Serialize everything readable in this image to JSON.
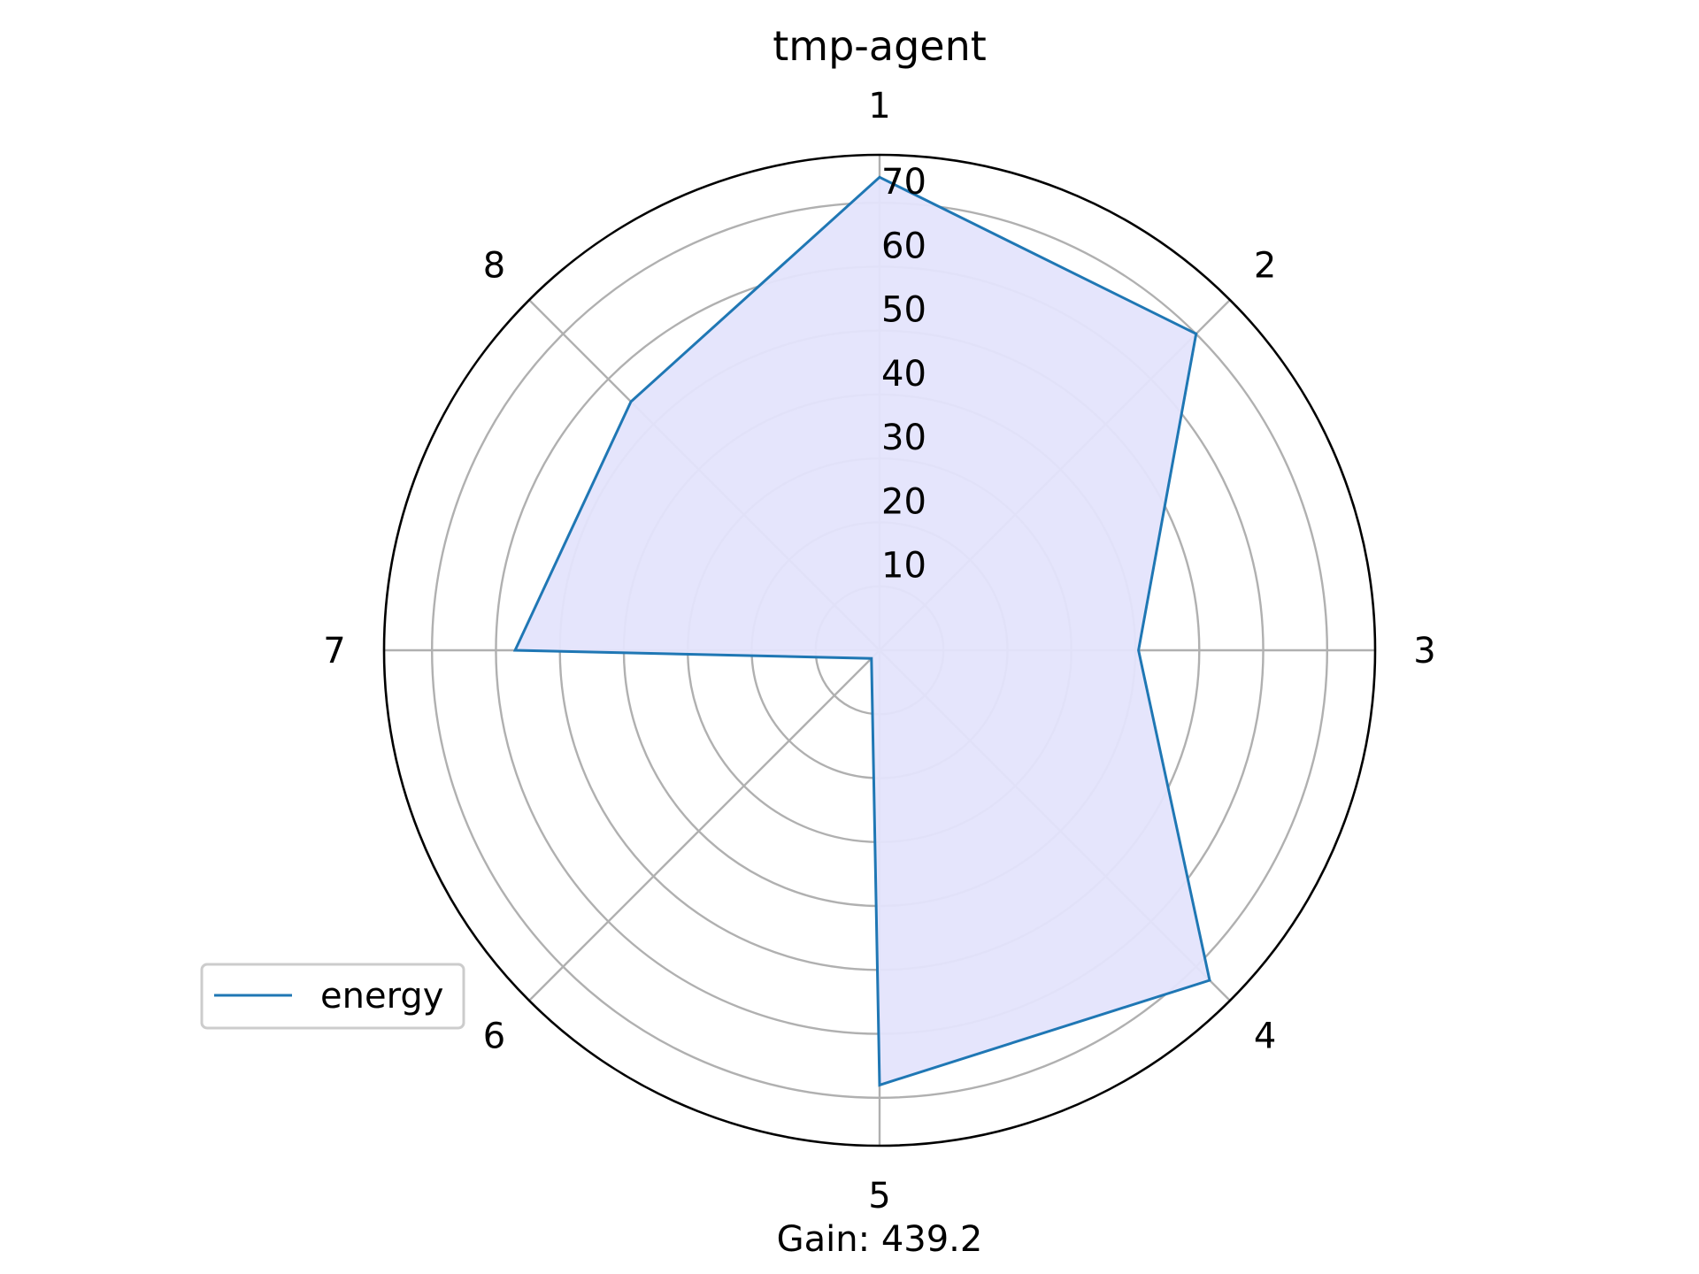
{
  "chart_data": {
    "type": "radar",
    "title": "tmp-agent",
    "footer": "Gain: 439.2",
    "categories": [
      "1",
      "2",
      "3",
      "4",
      "5",
      "6",
      "7",
      "8"
    ],
    "radial_ticks": [
      "10",
      "20",
      "30",
      "40",
      "50",
      "60",
      "70"
    ],
    "rmax": 77.5,
    "grid": true,
    "legend_position": "lower-left",
    "series": [
      {
        "name": "energy",
        "values": [
          74,
          70,
          40.5,
          73,
          68,
          1.8,
          57,
          55
        ],
        "line_color": "#1f77b4",
        "fill_color": "#e4e4fc"
      }
    ]
  }
}
